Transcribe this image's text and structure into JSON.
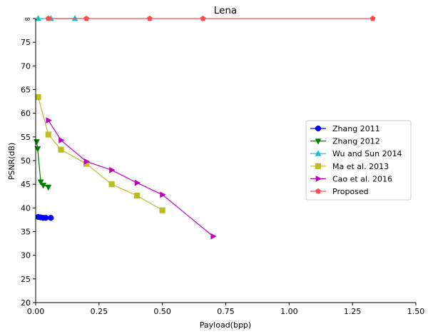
{
  "chart_data": {
    "type": "line",
    "title": "Lena",
    "xlabel": "Payload(bpp)",
    "ylabel": "PSNR(dB)",
    "xlim": [
      0,
      1.5
    ],
    "ylim": [
      20,
      80
    ],
    "xticks": [
      0,
      0.25,
      0.5,
      0.75,
      1.0,
      1.25,
      1.5
    ],
    "xtick_labels": [
      "0.00",
      "0.25",
      "0.50",
      "0.75",
      "1.00",
      "1.25",
      "1.50"
    ],
    "yticks": [
      20,
      25,
      30,
      35,
      40,
      45,
      50,
      55,
      60,
      65,
      70,
      75,
      80
    ],
    "ytick_labels": [
      "20",
      "25",
      "30",
      "35",
      "40",
      "45",
      "50",
      "55",
      "60",
      "65",
      "70",
      "75",
      "∞"
    ],
    "grid": false,
    "legend_position": "center-right",
    "series": [
      {
        "name": "Zhang 2011",
        "color": "#0000ff",
        "marker": "circle",
        "x": [
          0.01,
          0.02,
          0.03,
          0.04,
          0.06
        ],
        "y": [
          38.1,
          38.0,
          37.9,
          37.9,
          37.9
        ]
      },
      {
        "name": "Zhang 2012",
        "color": "#008000",
        "marker": "triangle-down",
        "x": [
          0.004,
          0.008,
          0.02,
          0.03,
          0.05
        ],
        "y": [
          54.0,
          52.5,
          45.5,
          44.8,
          44.4
        ]
      },
      {
        "name": "Wu and Sun 2014",
        "color": "#17becf",
        "marker": "triangle-up",
        "x": [
          0.01,
          0.06,
          0.155
        ],
        "y": [
          80,
          80,
          80
        ]
      },
      {
        "name": "Ma et al. 2013",
        "color": "#bcbd22",
        "marker": "square",
        "x": [
          0.01,
          0.05,
          0.1,
          0.2,
          0.3,
          0.4,
          0.5
        ],
        "y": [
          63.4,
          55.5,
          52.3,
          49.3,
          45.0,
          42.6,
          39.5
        ]
      },
      {
        "name": "Cao et al. 2016",
        "color": "#bf00bf",
        "marker": "triangle-right",
        "x": [
          0.05,
          0.1,
          0.2,
          0.3,
          0.4,
          0.5,
          0.7
        ],
        "y": [
          58.5,
          54.3,
          49.8,
          48.0,
          45.3,
          42.8,
          34.0
        ]
      },
      {
        "name": "Proposed",
        "color": "#ff4d4d",
        "marker": "pentagon",
        "x": [
          0.05,
          0.2,
          0.45,
          0.66,
          1.33
        ],
        "y": [
          80,
          80,
          80,
          80,
          80
        ]
      }
    ]
  }
}
